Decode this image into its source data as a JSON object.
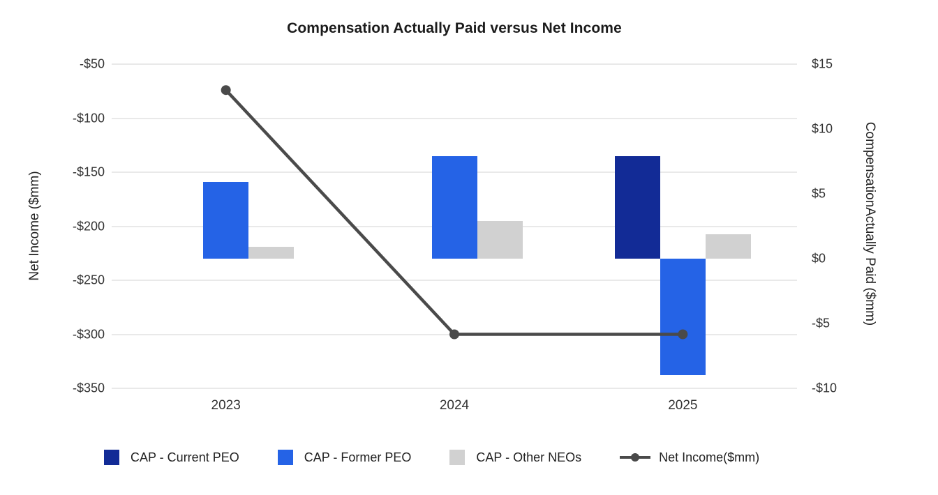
{
  "title": "Compensation Actually Paid versus Net Income",
  "chart_data": {
    "type": "combo-bar-line",
    "title": "Compensation Actually Paid versus Net Income",
    "categories": [
      "2023",
      "2024",
      "2025"
    ],
    "bar_series": [
      {
        "name": "CAP - Current PEO",
        "color": "#122B96",
        "axis": "right",
        "values": [
          null,
          null,
          7.9
        ]
      },
      {
        "name": "CAP - Former PEO",
        "color": "#2563E6",
        "axis": "right",
        "values": [
          5.9,
          7.9,
          -9.0
        ]
      },
      {
        "name": "CAP - Other NEOs",
        "color": "#D1D1D1",
        "axis": "right",
        "values": [
          0.9,
          2.9,
          1.9
        ]
      }
    ],
    "line_series": [
      {
        "name": "Net Income($mm)",
        "color": "#4A4A4A",
        "axis": "left",
        "values": [
          -74,
          -300,
          -300
        ]
      }
    ],
    "left_axis": {
      "label": "Net Income ($mm)",
      "ticks": [
        "-$50",
        "-$100",
        "-$150",
        "-$200",
        "-$250",
        "-$300",
        "-$350"
      ],
      "range": [
        -350,
        -50
      ]
    },
    "right_axis": {
      "label": "CompensationActually Paid ($mm)",
      "ticks": [
        "$15",
        "$10",
        "$5",
        "$0",
        "-$5",
        "-$10"
      ],
      "range": [
        -10,
        15
      ]
    },
    "grid": "horizontal",
    "legend_position": "bottom"
  }
}
